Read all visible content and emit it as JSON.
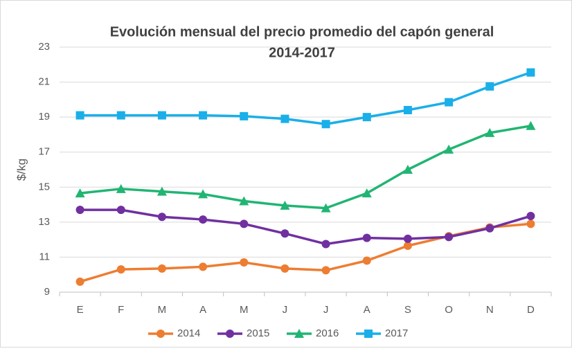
{
  "chart_data": {
    "type": "line",
    "title": [
      "Evolución mensual del precio promedio del capón general",
      "2014-2017"
    ],
    "y_label": "$/kg",
    "categories": [
      "E",
      "F",
      "M",
      "A",
      "M",
      "J",
      "J",
      "A",
      "S",
      "O",
      "N",
      "D"
    ],
    "series": [
      {
        "name": "2014",
        "color": "#ED7D31",
        "marker": "circle",
        "values": [
          9.6,
          10.3,
          10.35,
          10.45,
          10.7,
          10.35,
          10.25,
          10.8,
          11.65,
          12.2,
          12.7,
          12.9
        ]
      },
      {
        "name": "2015",
        "color": "#7030A0",
        "marker": "circle",
        "values": [
          13.7,
          13.7,
          13.3,
          13.15,
          12.9,
          12.35,
          11.75,
          12.1,
          12.05,
          12.15,
          12.65,
          13.35
        ]
      },
      {
        "name": "2016",
        "color": "#21B573",
        "marker": "triangle",
        "values": [
          14.65,
          14.9,
          14.75,
          14.6,
          14.2,
          13.95,
          13.8,
          14.65,
          16.0,
          17.15,
          18.1,
          18.5
        ]
      },
      {
        "name": "2017",
        "color": "#1AAFE8",
        "marker": "square",
        "values": [
          19.1,
          19.1,
          19.1,
          19.1,
          19.05,
          18.9,
          18.6,
          19.0,
          19.4,
          19.85,
          20.75,
          21.55
        ]
      }
    ],
    "ylim": [
      9,
      23
    ],
    "yticks": [
      9,
      11,
      13,
      15,
      17,
      19,
      21,
      23
    ],
    "grid": true,
    "legend": "bottom"
  }
}
